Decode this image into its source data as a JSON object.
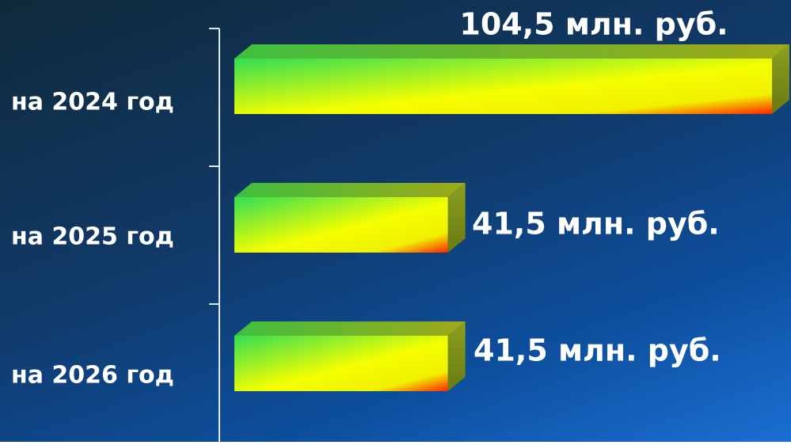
{
  "chart_data": {
    "type": "bar",
    "orientation": "horizontal",
    "style": "3d",
    "categories": [
      "на 2024 год",
      "на 2025 год",
      "на 2026 год"
    ],
    "values": [
      104.5,
      41.5,
      41.5
    ],
    "data_labels": [
      "104,5 млн. руб.",
      "41,5 млн. руб.",
      "41,5 млн. руб."
    ],
    "xlim": [
      0,
      104.5
    ],
    "title": "",
    "xlabel": "",
    "ylabel": "",
    "grid": false,
    "legend": "none",
    "colors": {
      "background_top": "#0f2a3a",
      "background_bottom": "#1a6fd2",
      "bar_green": "#33dd55",
      "bar_yellow": "#f5ff00",
      "bar_red": "#ff2200",
      "bar_top": "#66bb33",
      "bar_side": "#8aa020",
      "axis": "#e0e8f0",
      "text": "#ffffff"
    }
  }
}
